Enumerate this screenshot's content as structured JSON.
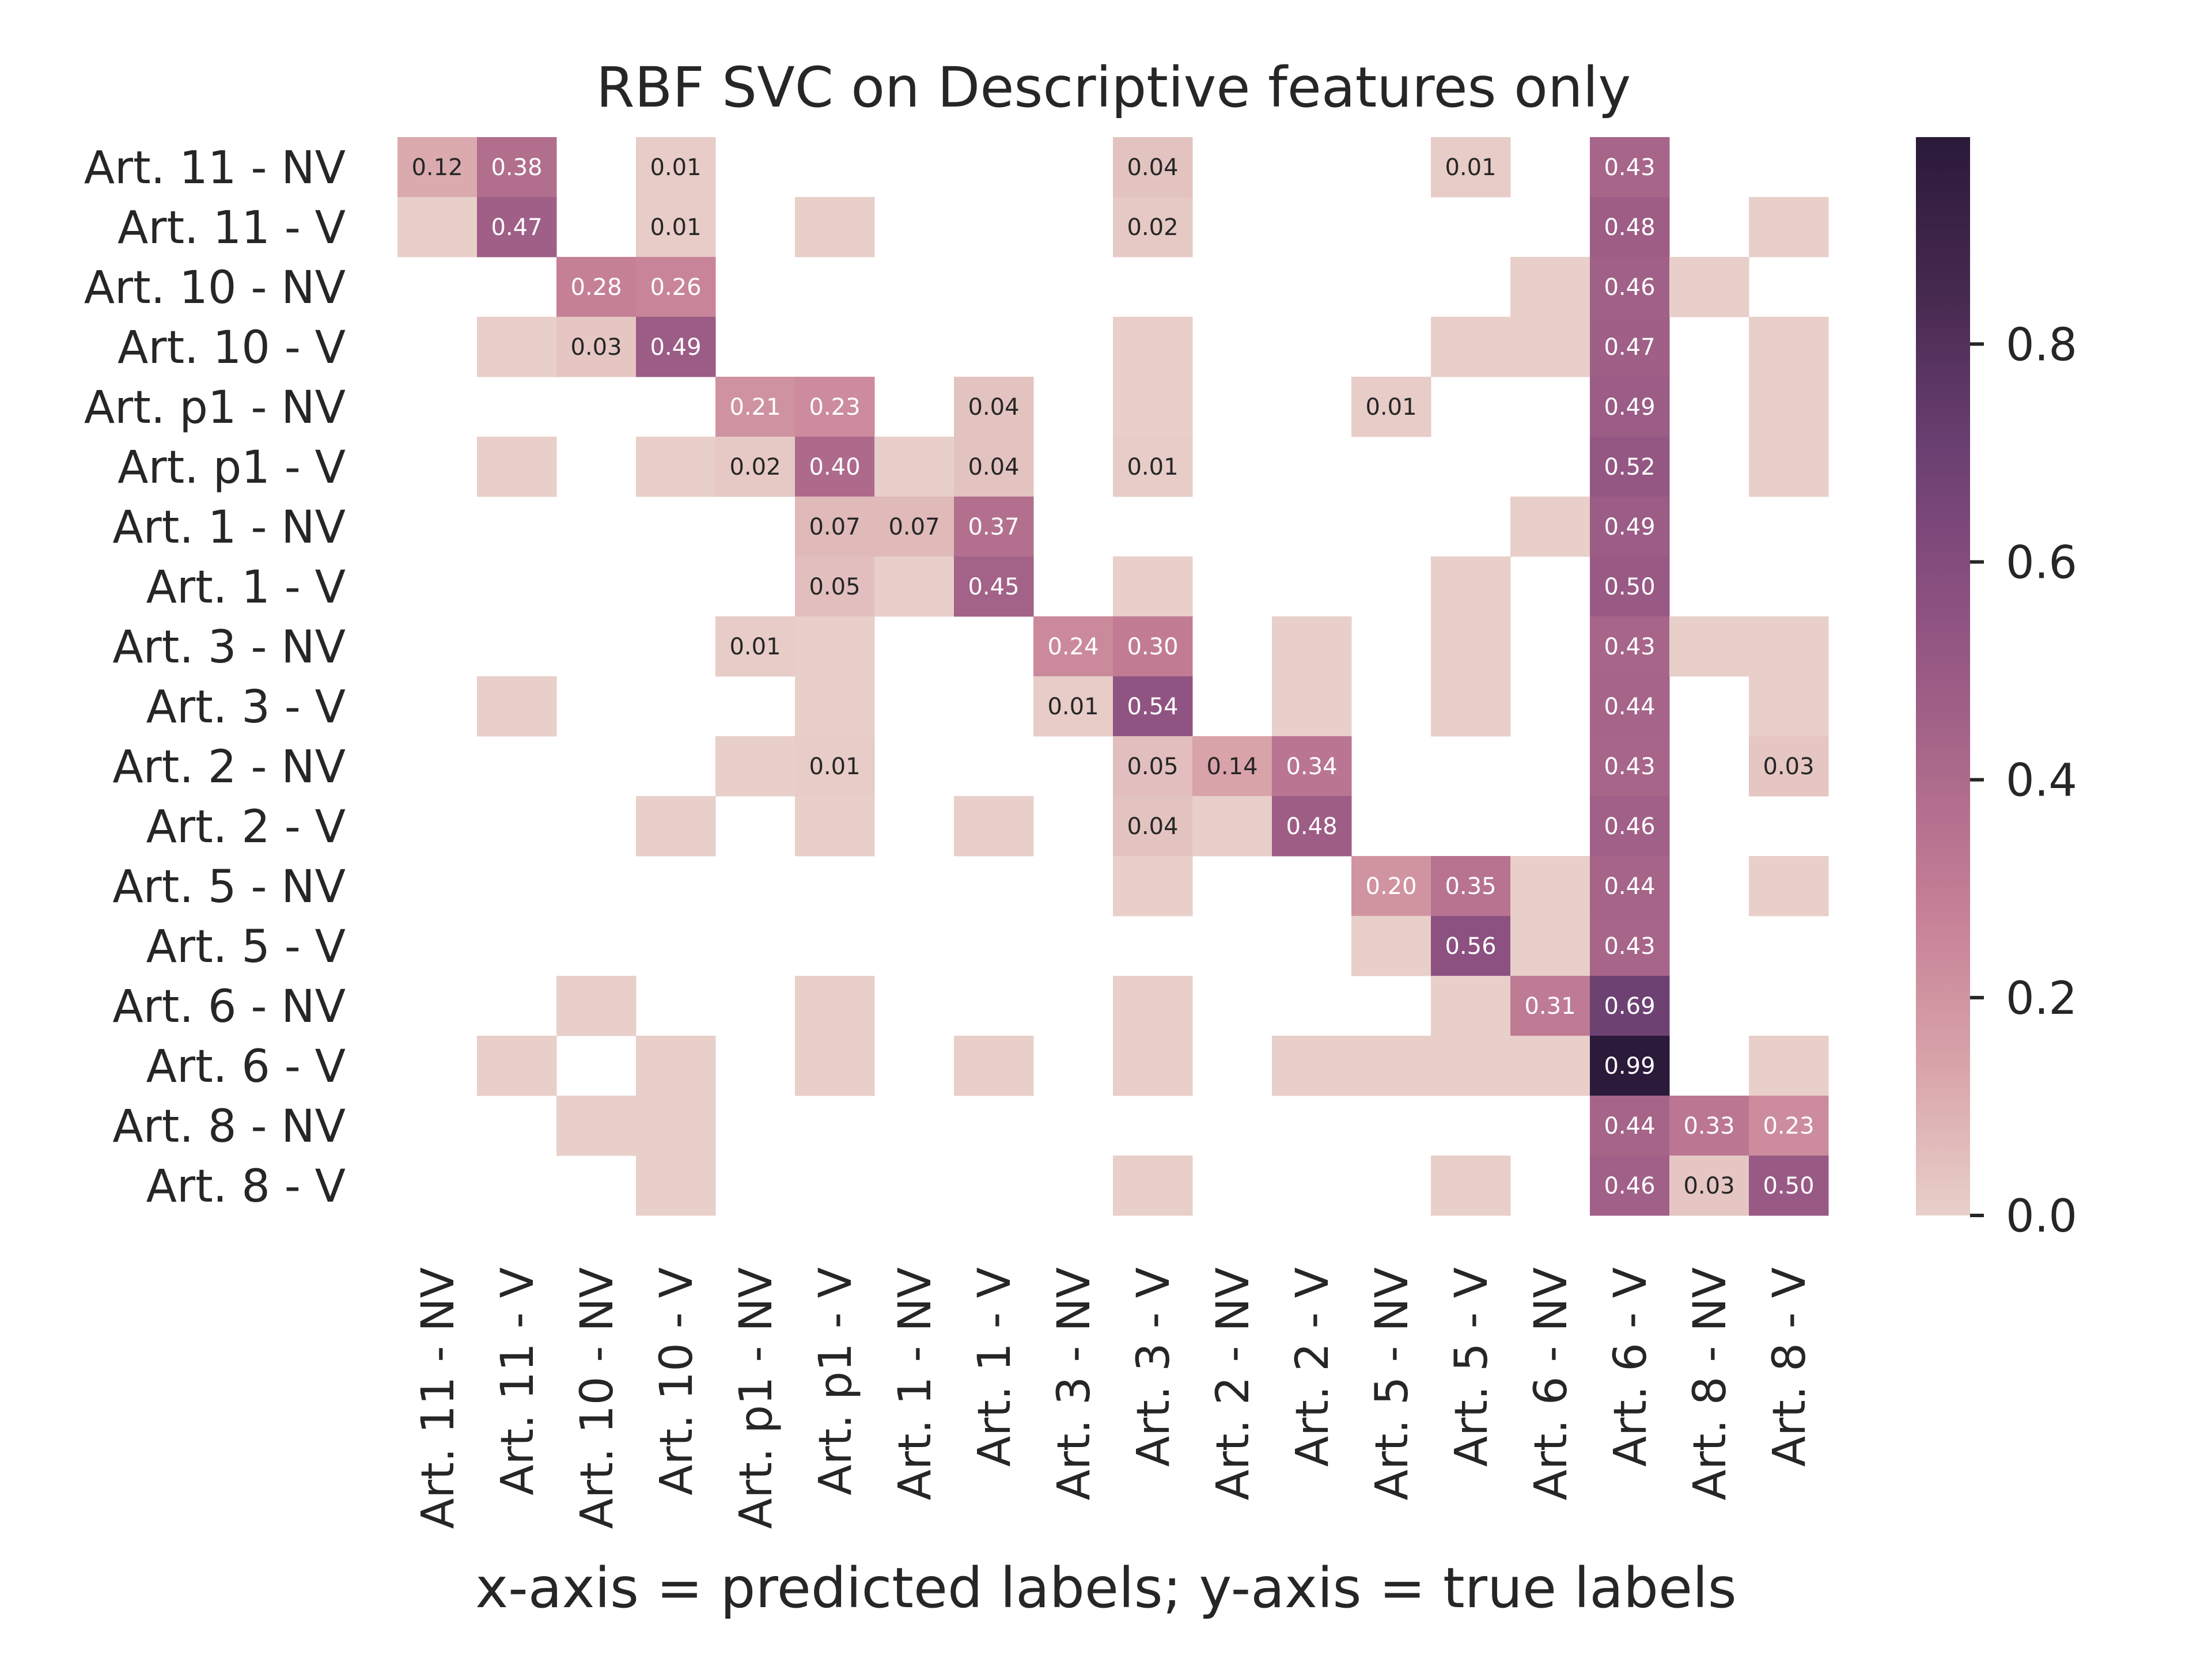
{
  "chart_data": {
    "type": "heatmap",
    "title": "RBF SVC on Descriptive features only",
    "xlabel": "x-axis = predicted labels; y-axis = true labels",
    "ylabel": "",
    "row_labels": [
      "Art. 11 - NV",
      "Art. 11 - V",
      "Art. 10 - NV",
      "Art. 10 - V",
      "Art. p1 - NV",
      "Art. p1 - V",
      "Art. 1 - NV",
      "Art. 1 - V",
      "Art. 3 - NV",
      "Art. 3 - V",
      "Art. 2 - NV",
      "Art. 2 - V",
      "Art. 5 - NV",
      "Art. 5 - V",
      "Art. 6 - NV",
      "Art. 6 - V",
      "Art. 8 - NV",
      "Art. 8 - V"
    ],
    "col_labels": [
      "Art. 11 - NV",
      "Art. 11 - V",
      "Art. 10 - NV",
      "Art. 10 - V",
      "Art. p1 - NV",
      "Art. p1 - V",
      "Art. 1 - NV",
      "Art. 1 - V",
      "Art. 3 - NV",
      "Art. 3 - V",
      "Art. 2 - NV",
      "Art. 2 - V",
      "Art. 5 - NV",
      "Art. 5 - V",
      "Art. 6 - NV",
      "Art. 6 - V",
      "Art. 8 - NV",
      "Art. 8 - V"
    ],
    "values": [
      [
        0.12,
        0.38,
        null,
        0.01,
        null,
        null,
        null,
        null,
        null,
        0.04,
        null,
        null,
        null,
        0.01,
        null,
        0.43,
        null,
        null
      ],
      [
        0.0,
        0.47,
        null,
        0.01,
        null,
        0.0,
        null,
        null,
        null,
        0.02,
        null,
        null,
        null,
        null,
        null,
        0.48,
        null,
        0.0
      ],
      [
        null,
        null,
        0.28,
        0.26,
        null,
        null,
        null,
        null,
        null,
        null,
        null,
        null,
        null,
        null,
        0.0,
        0.46,
        0.0,
        null
      ],
      [
        null,
        0.0,
        0.03,
        0.49,
        null,
        null,
        null,
        null,
        null,
        0.0,
        null,
        null,
        null,
        0.0,
        0.0,
        0.47,
        null,
        0.0
      ],
      [
        null,
        null,
        null,
        null,
        0.21,
        0.23,
        null,
        0.04,
        null,
        0.0,
        null,
        null,
        0.01,
        null,
        null,
        0.49,
        null,
        0.0
      ],
      [
        null,
        0.0,
        null,
        0.0,
        0.02,
        0.4,
        0.0,
        0.04,
        null,
        0.01,
        null,
        null,
        null,
        null,
        null,
        0.52,
        null,
        0.0
      ],
      [
        null,
        null,
        null,
        null,
        null,
        0.07,
        0.07,
        0.37,
        null,
        null,
        null,
        null,
        null,
        null,
        0.0,
        0.49,
        null,
        null
      ],
      [
        null,
        null,
        null,
        null,
        null,
        0.05,
        0.0,
        0.45,
        null,
        0.0,
        null,
        null,
        null,
        0.0,
        null,
        0.5,
        null,
        null
      ],
      [
        null,
        null,
        null,
        null,
        0.01,
        0.0,
        null,
        null,
        0.24,
        0.3,
        null,
        0.0,
        null,
        0.0,
        null,
        0.43,
        0.0,
        0.0
      ],
      [
        null,
        0.0,
        null,
        null,
        null,
        0.0,
        null,
        null,
        0.01,
        0.54,
        null,
        0.0,
        null,
        0.0,
        null,
        0.44,
        null,
        0.0
      ],
      [
        null,
        null,
        null,
        null,
        0.0,
        0.01,
        null,
        null,
        null,
        0.05,
        0.14,
        0.34,
        null,
        null,
        null,
        0.43,
        null,
        0.03
      ],
      [
        null,
        null,
        null,
        0.0,
        null,
        0.0,
        null,
        0.0,
        null,
        0.04,
        0.0,
        0.48,
        null,
        null,
        null,
        0.46,
        null,
        null
      ],
      [
        null,
        null,
        null,
        null,
        null,
        null,
        null,
        null,
        null,
        0.0,
        null,
        null,
        0.2,
        0.35,
        0.0,
        0.44,
        null,
        0.0
      ],
      [
        null,
        null,
        null,
        null,
        null,
        null,
        null,
        null,
        null,
        null,
        null,
        null,
        0.0,
        0.56,
        0.0,
        0.43,
        null,
        null
      ],
      [
        null,
        null,
        0.0,
        null,
        null,
        0.0,
        null,
        null,
        null,
        0.0,
        null,
        null,
        null,
        0.0,
        0.31,
        0.69,
        null,
        null
      ],
      [
        null,
        0.0,
        null,
        0.0,
        null,
        0.0,
        null,
        0.0,
        null,
        0.0,
        null,
        0.0,
        0.0,
        0.0,
        0.0,
        0.99,
        null,
        0.0
      ],
      [
        null,
        null,
        0.0,
        0.0,
        null,
        null,
        null,
        null,
        null,
        null,
        null,
        null,
        null,
        null,
        null,
        0.44,
        0.33,
        0.23
      ],
      [
        null,
        null,
        null,
        0.0,
        null,
        null,
        null,
        null,
        null,
        0.0,
        null,
        null,
        null,
        0.0,
        null,
        0.46,
        0.03,
        0.5
      ]
    ],
    "value_range": [
      0.0,
      0.99
    ],
    "colorbar": {
      "ticks": [
        "0.0",
        "0.2",
        "0.4",
        "0.6",
        "0.8"
      ],
      "tick_values": [
        0.0,
        0.2,
        0.4,
        0.6,
        0.8
      ]
    },
    "colormap": [
      "#e8cfc9",
      "#d8a3a9",
      "#c57f96",
      "#a86689",
      "#8b5080",
      "#6a3f71",
      "#46294f",
      "#2b1a3a"
    ],
    "legend": "right colorbar",
    "grid": false
  }
}
